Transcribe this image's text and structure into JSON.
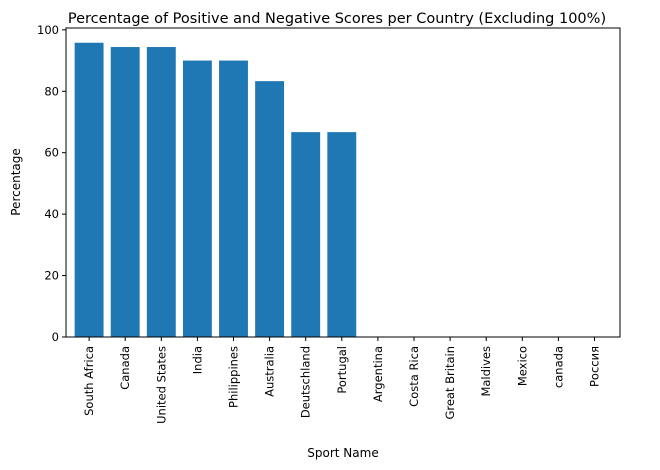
{
  "chart_data": {
    "type": "bar",
    "title": "Percentage of Positive and Negative Scores per Country (Excluding 100%)",
    "xlabel": "Sport Name",
    "ylabel": "Percentage",
    "categories": [
      "South Africa",
      "Canada",
      "United States",
      "India",
      "Philippines",
      "Australia",
      "Deutschland",
      "Portugal",
      "Argentina",
      "Costa Rica",
      "Great Britain",
      "Maldives",
      "Mexico",
      "canada",
      "Россия"
    ],
    "values": [
      95.8,
      94.4,
      94.4,
      90.0,
      90.0,
      83.3,
      66.7,
      66.7,
      0,
      0,
      0,
      0,
      0,
      0,
      0
    ],
    "ylim": [
      0,
      100.6
    ],
    "yticks": [
      0,
      20,
      40,
      60,
      80,
      100
    ],
    "bar_color": "#1f77b4",
    "grid": false,
    "legend": "none"
  }
}
